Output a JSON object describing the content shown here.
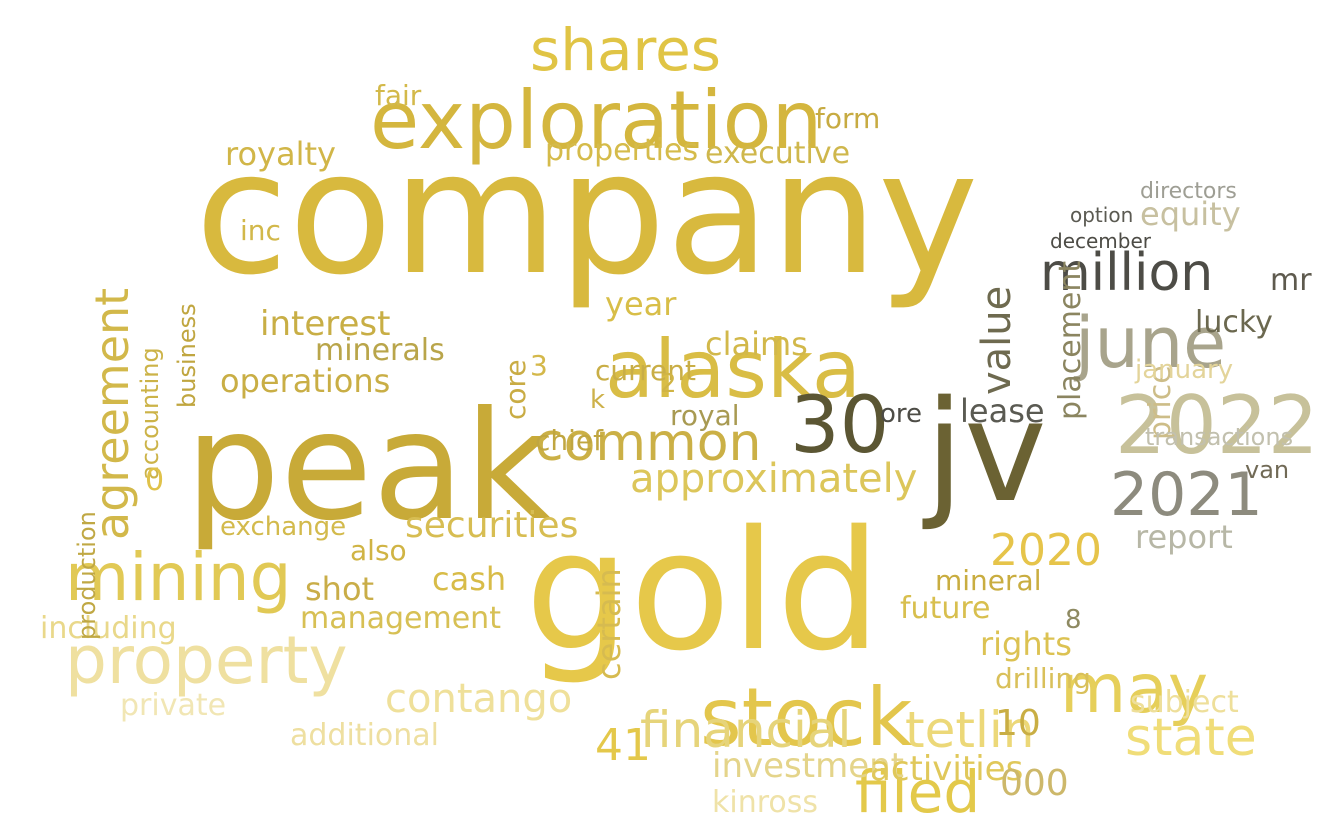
{
  "words": [
    {
      "text": "company",
      "color": "#d8b93e"
    },
    {
      "text": "gold",
      "color": "#e6c84a"
    },
    {
      "text": "peak",
      "color": "#c8aa38"
    },
    {
      "text": "jv",
      "color": "#6b6233"
    },
    {
      "text": "exploration",
      "color": "#d4b63e"
    },
    {
      "text": "alaska",
      "color": "#d9bd45"
    },
    {
      "text": "stock",
      "color": "#e3c64c"
    },
    {
      "text": "shares",
      "color": "#e0c445"
    },
    {
      "text": "mining",
      "color": "#e1c955"
    },
    {
      "text": "property",
      "color": "#efe0a0"
    },
    {
      "text": "june",
      "color": "#a8a48c"
    },
    {
      "text": "2022",
      "color": "#c7c19a"
    },
    {
      "text": "2021",
      "color": "#8d8b7e"
    },
    {
      "text": "million",
      "color": "#4d4c46"
    },
    {
      "text": "may",
      "color": "#e6cf5a"
    },
    {
      "text": "financial",
      "color": "#e6d47a"
    },
    {
      "text": "tetlin",
      "color": "#ecd878"
    },
    {
      "text": "30",
      "color": "#5b5633"
    },
    {
      "text": "common",
      "color": "#cbb046"
    },
    {
      "text": "agreement",
      "color": "#d2b84a"
    },
    {
      "text": "approximately",
      "color": "#dcc65a"
    },
    {
      "text": "state",
      "color": "#f0dd78"
    },
    {
      "text": "contango",
      "color": "#efe09a"
    },
    {
      "text": "filed",
      "color": "#e3c94a"
    },
    {
      "text": "2020",
      "color": "#e6c44a"
    },
    {
      "text": "securities",
      "color": "#d7bd52"
    },
    {
      "text": "interest",
      "color": "#c8ae45"
    },
    {
      "text": "operations",
      "color": "#c9ae45"
    },
    {
      "text": "minerals",
      "color": "#b9a54a"
    },
    {
      "text": "royalty",
      "color": "#d1b648"
    },
    {
      "text": "executive",
      "color": "#cfb74c"
    },
    {
      "text": "properties",
      "color": "#d5bb4a"
    },
    {
      "text": "value",
      "color": "#6e6a4f"
    },
    {
      "text": "lease",
      "color": "#5a5a52"
    },
    {
      "text": "equity",
      "color": "#c7c0a0"
    },
    {
      "text": "report",
      "color": "#b7b7a6"
    },
    {
      "text": "mr",
      "color": "#5e5a4e"
    },
    {
      "text": "lucky",
      "color": "#6b684f"
    },
    {
      "text": "price",
      "color": "#cdbd88"
    },
    {
      "text": "placement",
      "color": "#8b8560"
    },
    {
      "text": "january",
      "color": "#e3d49a"
    },
    {
      "text": "transactions",
      "color": "#c2c0ae"
    },
    {
      "text": "van",
      "color": "#716a56"
    },
    {
      "text": "directors",
      "color": "#9e9e94"
    },
    {
      "text": "december",
      "color": "#4d4c46"
    },
    {
      "text": "option",
      "color": "#5b5a52"
    },
    {
      "text": "investment",
      "color": "#e4d48a"
    },
    {
      "text": "activities",
      "color": "#e0c85a"
    },
    {
      "text": "kinross",
      "color": "#efe2a8"
    },
    {
      "text": "000",
      "color": "#cdb86a"
    },
    {
      "text": "41",
      "color": "#e4c84a"
    },
    {
      "text": "cash",
      "color": "#d8bc48"
    },
    {
      "text": "shot",
      "color": "#c9ad48"
    },
    {
      "text": "management",
      "color": "#d7c054"
    },
    {
      "text": "including",
      "color": "#e9d88a"
    },
    {
      "text": "private",
      "color": "#f1e6b4"
    },
    {
      "text": "additional",
      "color": "#eedfa0"
    },
    {
      "text": "rights",
      "color": "#dcc252"
    },
    {
      "text": "future",
      "color": "#d8bf4e"
    },
    {
      "text": "mineral",
      "color": "#c9ad40"
    },
    {
      "text": "exchange",
      "color": "#d3ba4c"
    },
    {
      "text": "accounting",
      "color": "#ccb348"
    },
    {
      "text": "business",
      "color": "#c0a640"
    },
    {
      "text": "production",
      "color": "#c0a844"
    },
    {
      "text": "year",
      "color": "#d8be48"
    },
    {
      "text": "claims",
      "color": "#d2b84a"
    },
    {
      "text": "current",
      "color": "#c9ae46"
    },
    {
      "text": "chief",
      "color": "#c0a640"
    },
    {
      "text": "core",
      "color": "#c9ac44"
    },
    {
      "text": "royal",
      "color": "#a89a52"
    },
    {
      "text": "certain",
      "color": "#d6bb50"
    },
    {
      "text": "subject",
      "color": "#eedf9a"
    },
    {
      "text": "drilling",
      "color": "#d9c05a"
    },
    {
      "text": "10",
      "color": "#c9ae44"
    },
    {
      "text": "3",
      "color": "#d4b84a"
    },
    {
      "text": "2",
      "color": "#d0b444"
    },
    {
      "text": "0",
      "color": "#e0c24a"
    },
    {
      "text": "8",
      "color": "#8e8a62"
    },
    {
      "text": "also",
      "color": "#d0b444"
    },
    {
      "text": "fair",
      "color": "#d3b94a"
    },
    {
      "text": "form",
      "color": "#c7ab42"
    },
    {
      "text": "inc",
      "color": "#d2b84a"
    },
    {
      "text": "ore",
      "color": "#4d4c46"
    },
    {
      "text": "k",
      "color": "#cdb14a"
    }
  ]
}
